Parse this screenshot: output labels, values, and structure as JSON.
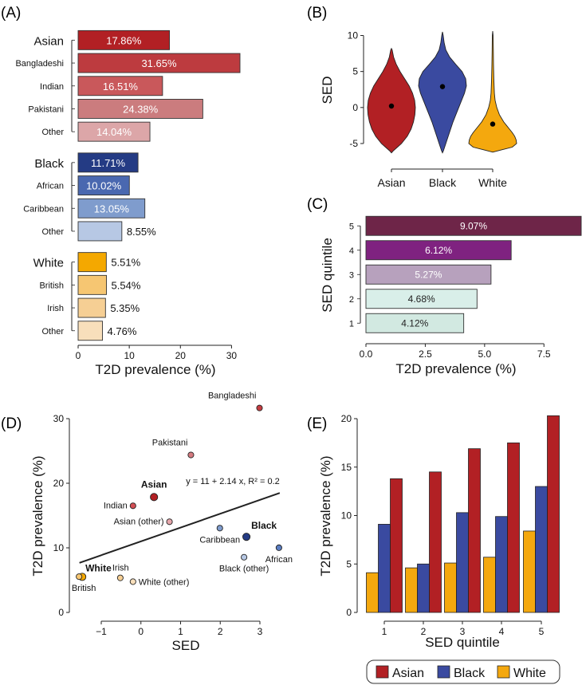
{
  "colors": {
    "asian": "#b22024",
    "black": "#3a4aa0",
    "white": "#f4a80e",
    "axis": "#222222"
  },
  "chart_data": [
    {
      "panel": "(A)",
      "type": "bar",
      "orientation": "horizontal",
      "xlabel": "T2D prevalence (%)",
      "xlim": [
        0,
        31.65
      ],
      "xticks": [
        0,
        10,
        20,
        30
      ],
      "groups": [
        {
          "name": "Asian",
          "rows": [
            {
              "label": "Asian",
              "value": 17.86,
              "text": "17.86%",
              "header": true,
              "fill": "#b22024"
            },
            {
              "label": "Bangladeshi",
              "value": 31.65,
              "text": "31.65%",
              "fill": "#bd3b3f"
            },
            {
              "label": "Indian",
              "value": 16.51,
              "text": "16.51%",
              "fill": "#c9585b"
            },
            {
              "label": "Pakistani",
              "value": 24.38,
              "text": "24.38%",
              "fill": "#cb7c7e"
            },
            {
              "label": "Other",
              "value": 14.04,
              "text": "14.04%",
              "fill": "#dca6a8"
            }
          ]
        },
        {
          "name": "Black",
          "rows": [
            {
              "label": "Black",
              "value": 11.71,
              "text": "11.71%",
              "header": true,
              "fill": "#243b84"
            },
            {
              "label": "African",
              "value": 10.02,
              "text": "10.02%",
              "fill": "#4a68b0"
            },
            {
              "label": "Caribbean",
              "value": 13.05,
              "text": "13.05%",
              "fill": "#7f9ccd"
            },
            {
              "label": "Other",
              "value": 8.55,
              "text": "8.55%",
              "fill": "#b7c8e4"
            }
          ]
        },
        {
          "name": "White",
          "rows": [
            {
              "label": "White",
              "value": 5.51,
              "text": "5.51%",
              "header": true,
              "fill": "#f4a800"
            },
            {
              "label": "British",
              "value": 5.54,
              "text": "5.54%",
              "fill": "#f6c672"
            },
            {
              "label": "Irish",
              "value": 5.35,
              "text": "5.35%",
              "fill": "#f6cf94"
            },
            {
              "label": "Other",
              "value": 4.76,
              "text": "4.76%",
              "fill": "#f8dfbb"
            }
          ]
        }
      ]
    },
    {
      "panel": "(B)",
      "type": "violin",
      "ylabel": "SED",
      "ylim": [
        -6,
        10.5
      ],
      "yticks": [
        -5,
        0,
        5,
        10
      ],
      "categories": [
        "Asian",
        "Black",
        "White"
      ],
      "medians": [
        0.2,
        2.9,
        -2.3
      ],
      "series": [
        {
          "name": "Asian",
          "min": -6.3,
          "max": 8.2,
          "profile": [
            [
              -6.3,
              0
            ],
            [
              -6,
              0.08
            ],
            [
              -5.5,
              0.25
            ],
            [
              -5,
              0.42
            ],
            [
              -4,
              0.66
            ],
            [
              -3,
              0.82
            ],
            [
              -2,
              0.92
            ],
            [
              -1,
              0.98
            ],
            [
              0,
              1
            ],
            [
              1,
              0.97
            ],
            [
              2,
              0.88
            ],
            [
              3,
              0.74
            ],
            [
              4,
              0.55
            ],
            [
              5,
              0.36
            ],
            [
              6,
              0.2
            ],
            [
              7,
              0.09
            ],
            [
              8,
              0.03
            ],
            [
              8.2,
              0
            ]
          ]
        },
        {
          "name": "Black",
          "min": -6.3,
          "max": 10.5,
          "profile": [
            [
              -6.3,
              0
            ],
            [
              -6,
              0.04
            ],
            [
              -5,
              0.14
            ],
            [
              -4,
              0.24
            ],
            [
              -3,
              0.34
            ],
            [
              -2,
              0.44
            ],
            [
              -1,
              0.56
            ],
            [
              0,
              0.68
            ],
            [
              1,
              0.8
            ],
            [
              2,
              0.92
            ],
            [
              3,
              1
            ],
            [
              4,
              0.97
            ],
            [
              5,
              0.82
            ],
            [
              6,
              0.55
            ],
            [
              7,
              0.3
            ],
            [
              8,
              0.14
            ],
            [
              9,
              0.07
            ],
            [
              10,
              0.03
            ],
            [
              10.5,
              0
            ]
          ]
        },
        {
          "name": "White",
          "min": -6.2,
          "max": 10.6,
          "profile": [
            [
              -6.2,
              0
            ],
            [
              -5.9,
              0.35
            ],
            [
              -5.5,
              0.82
            ],
            [
              -5,
              1
            ],
            [
              -4.5,
              0.98
            ],
            [
              -4,
              0.92
            ],
            [
              -3.5,
              0.82
            ],
            [
              -3,
              0.7
            ],
            [
              -2,
              0.46
            ],
            [
              -1,
              0.28
            ],
            [
              0,
              0.17
            ],
            [
              1,
              0.1
            ],
            [
              2,
              0.07
            ],
            [
              4,
              0.045
            ],
            [
              6,
              0.035
            ],
            [
              8,
              0.025
            ],
            [
              10,
              0.015
            ],
            [
              10.6,
              0
            ]
          ]
        }
      ]
    },
    {
      "panel": "(C)",
      "type": "bar",
      "orientation": "horizontal",
      "xlabel": "T2D prevalence (%)",
      "ylabel": "SED quintile",
      "xlim": [
        0,
        9.07
      ],
      "xticks": [
        "0.0",
        "2.5",
        "5.0",
        "7.5"
      ],
      "categories": [
        "5",
        "4",
        "3",
        "2",
        "1"
      ],
      "values": [
        9.07,
        6.12,
        5.27,
        4.68,
        4.12
      ],
      "labels": [
        "9.07%",
        "6.12%",
        "5.27%",
        "4.68%",
        "4.12%"
      ],
      "fills": [
        "#6e2548",
        "#7f2280",
        "#b7a1bd",
        "#d9efe9",
        "#d2e9e1"
      ],
      "label_colors": [
        "#ffffff",
        "#ffffff",
        "#ffffff",
        "#222222",
        "#222222"
      ]
    },
    {
      "panel": "(D)",
      "type": "scatter",
      "xlabel": "SED",
      "ylabel": "T2D prevalence (%)",
      "xlim": [
        -1.7,
        3.6
      ],
      "ylim": [
        0,
        31.65
      ],
      "xticks": [
        -1,
        0,
        1,
        2,
        3
      ],
      "yticks": [
        0,
        10,
        20,
        30
      ],
      "annotation": "y = 11 + 2.14 x, R² = 0.2",
      "fit": {
        "intercept": 11,
        "slope": 2.14,
        "x_from": -1.55,
        "x_to": 3.5
      },
      "points": [
        {
          "label": "Bangladeshi",
          "x": 2.99,
          "y": 31.65,
          "fill": "#c43d42",
          "bold": false
        },
        {
          "label": "Pakistani",
          "x": 1.26,
          "y": 24.38,
          "fill": "#d57b80",
          "bold": false
        },
        {
          "label": "Asian",
          "x": 0.33,
          "y": 17.86,
          "fill": "#b22024",
          "bold": true
        },
        {
          "label": "Indian",
          "x": -0.2,
          "y": 16.51,
          "fill": "#d34f55",
          "bold": false
        },
        {
          "label": "Asian (other)",
          "x": 0.72,
          "y": 14.04,
          "fill": "#e6a6ab",
          "bold": false
        },
        {
          "label": "Caribbean",
          "x": 1.99,
          "y": 13.05,
          "fill": "#7f9ccd",
          "bold": false
        },
        {
          "label": "Black",
          "x": 2.66,
          "y": 11.71,
          "fill": "#243b84",
          "bold": true
        },
        {
          "label": "African",
          "x": 3.48,
          "y": 10.02,
          "fill": "#5b7ec2",
          "bold": false
        },
        {
          "label": "Black (other)",
          "x": 2.6,
          "y": 8.55,
          "fill": "#b7c8e4",
          "bold": false
        },
        {
          "label": "White",
          "x": -1.48,
          "y": 5.51,
          "fill": "#f4a800",
          "bold": true
        },
        {
          "label": "British",
          "x": -1.56,
          "y": 5.54,
          "fill": "#f6c672",
          "bold": false
        },
        {
          "label": "Irish",
          "x": -0.52,
          "y": 5.35,
          "fill": "#f6cf94",
          "bold": false
        },
        {
          "label": "White (other)",
          "x": -0.2,
          "y": 4.76,
          "fill": "#f8dfbb",
          "bold": false
        }
      ]
    },
    {
      "panel": "(E)",
      "type": "bar",
      "orientation": "vertical",
      "xlabel": "SED quintile",
      "ylabel": "T2D prevalence (%)",
      "ylim": [
        0,
        21
      ],
      "yticks": [
        0,
        5,
        10,
        15,
        20
      ],
      "categories": [
        "1",
        "2",
        "3",
        "4",
        "5"
      ],
      "series": [
        {
          "name": "White",
          "values": [
            4.1,
            4.6,
            5.1,
            5.7,
            8.4
          ]
        },
        {
          "name": "Black",
          "values": [
            9.1,
            5.0,
            10.3,
            9.9,
            13.0
          ]
        },
        {
          "name": "Asian",
          "values": [
            13.8,
            14.5,
            16.9,
            17.5,
            20.3
          ]
        }
      ],
      "legend": [
        "Asian",
        "Black",
        "White"
      ]
    }
  ]
}
